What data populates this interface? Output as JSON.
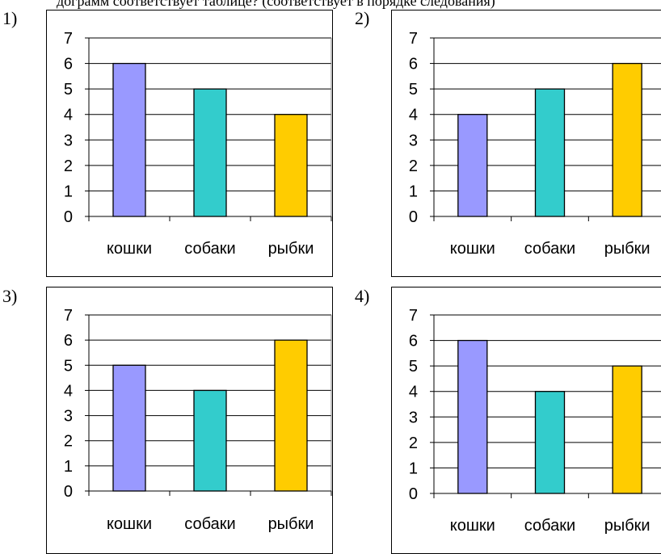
{
  "header_text": "дограмм соответствует таблице? (соответствует в порядке следования)",
  "chart_data": [
    {
      "label": "1)",
      "type": "bar",
      "categories": [
        "кошки",
        "собаки",
        "рыбки"
      ],
      "values": [
        6,
        5,
        4
      ],
      "ylim": [
        0,
        7
      ],
      "yticks": [
        "0",
        "1",
        "2",
        "3",
        "4",
        "5",
        "6",
        "7"
      ],
      "colors": [
        "#9999ff",
        "#33cccc",
        "#ffcc00"
      ],
      "grid": true
    },
    {
      "label": "2)",
      "type": "bar",
      "categories": [
        "кошки",
        "собаки",
        "рыбки"
      ],
      "values": [
        4,
        5,
        6
      ],
      "ylim": [
        0,
        7
      ],
      "yticks": [
        "0",
        "1",
        "2",
        "3",
        "4",
        "5",
        "6",
        "7"
      ],
      "colors": [
        "#9999ff",
        "#33cccc",
        "#ffcc00"
      ],
      "grid": true
    },
    {
      "label": "3)",
      "type": "bar",
      "categories": [
        "кошки",
        "собаки",
        "рыбки"
      ],
      "values": [
        5,
        4,
        6
      ],
      "ylim": [
        0,
        7
      ],
      "yticks": [
        "0",
        "1",
        "2",
        "3",
        "4",
        "5",
        "6",
        "7"
      ],
      "colors": [
        "#9999ff",
        "#33cccc",
        "#ffcc00"
      ],
      "grid": true
    },
    {
      "label": "4)",
      "type": "bar",
      "categories": [
        "кошки",
        "собаки",
        "рыбки"
      ],
      "values": [
        6,
        4,
        5
      ],
      "ylim": [
        0,
        7
      ],
      "yticks": [
        "0",
        "1",
        "2",
        "3",
        "4",
        "5",
        "6",
        "7"
      ],
      "colors": [
        "#9999ff",
        "#33cccc",
        "#ffcc00"
      ],
      "grid": true
    }
  ]
}
